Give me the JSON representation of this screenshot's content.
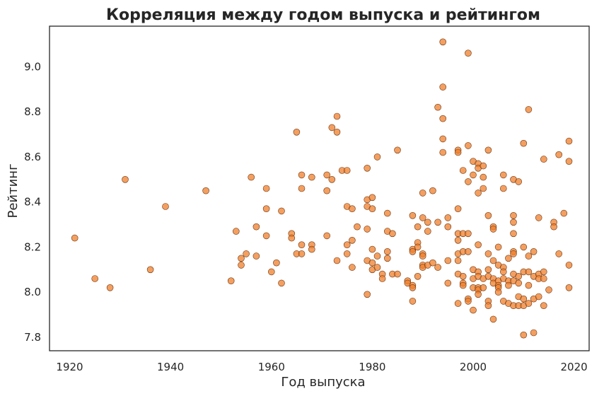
{
  "chart_data": {
    "type": "scatter",
    "title": "Корреляция между годом выпуска и рейтингом",
    "xlabel": "Год выпуска",
    "ylabel": "Рейтинг",
    "xlim": [
      1916,
      2023
    ],
    "ylim": [
      7.74,
      9.18
    ],
    "xticks": [
      1920,
      1940,
      1960,
      1980,
      2000,
      2020
    ],
    "xtick_labels": [
      "1920",
      "1940",
      "1960",
      "1980",
      "2000",
      "2020"
    ],
    "yticks": [
      7.8,
      8.0,
      8.2,
      8.4,
      8.6,
      8.8,
      9.0
    ],
    "ytick_labels": [
      "7.8",
      "8.0",
      "8.2",
      "8.4",
      "8.6",
      "8.8",
      "9.0"
    ],
    "grid": false,
    "colors": {
      "marker_fill": "#F07F2B",
      "marker_edge": "#6B3510",
      "frame": "#262626"
    },
    "points": [
      {
        "x": 1921,
        "y": 8.24
      },
      {
        "x": 1925,
        "y": 8.06
      },
      {
        "x": 1928,
        "y": 8.02
      },
      {
        "x": 1931,
        "y": 8.5
      },
      {
        "x": 1936,
        "y": 8.1
      },
      {
        "x": 1939,
        "y": 8.38
      },
      {
        "x": 1947,
        "y": 8.45
      },
      {
        "x": 1952,
        "y": 8.05
      },
      {
        "x": 1953,
        "y": 8.27
      },
      {
        "x": 1954,
        "y": 8.15
      },
      {
        "x": 1954,
        "y": 8.12
      },
      {
        "x": 1955,
        "y": 8.17
      },
      {
        "x": 1956,
        "y": 8.51
      },
      {
        "x": 1957,
        "y": 8.29
      },
      {
        "x": 1957,
        "y": 8.16
      },
      {
        "x": 1959,
        "y": 8.46
      },
      {
        "x": 1959,
        "y": 8.37
      },
      {
        "x": 1959,
        "y": 8.25
      },
      {
        "x": 1960,
        "y": 8.09
      },
      {
        "x": 1961,
        "y": 8.13
      },
      {
        "x": 1962,
        "y": 8.36
      },
      {
        "x": 1962,
        "y": 8.04
      },
      {
        "x": 1964,
        "y": 8.26
      },
      {
        "x": 1964,
        "y": 8.24
      },
      {
        "x": 1965,
        "y": 8.71
      },
      {
        "x": 1965,
        "y": 8.17
      },
      {
        "x": 1966,
        "y": 8.52
      },
      {
        "x": 1966,
        "y": 8.46
      },
      {
        "x": 1966,
        "y": 8.21
      },
      {
        "x": 1966,
        "y": 8.17
      },
      {
        "x": 1968,
        "y": 8.51
      },
      {
        "x": 1968,
        "y": 8.21
      },
      {
        "x": 1968,
        "y": 8.19
      },
      {
        "x": 1971,
        "y": 8.52
      },
      {
        "x": 1971,
        "y": 8.45
      },
      {
        "x": 1971,
        "y": 8.25
      },
      {
        "x": 1972,
        "y": 8.73
      },
      {
        "x": 1972,
        "y": 8.5
      },
      {
        "x": 1973,
        "y": 8.78
      },
      {
        "x": 1973,
        "y": 8.71
      },
      {
        "x": 1973,
        "y": 8.14
      },
      {
        "x": 1974,
        "y": 8.54
      },
      {
        "x": 1975,
        "y": 8.54
      },
      {
        "x": 1975,
        "y": 8.38
      },
      {
        "x": 1975,
        "y": 8.21
      },
      {
        "x": 1975,
        "y": 8.17
      },
      {
        "x": 1976,
        "y": 8.37
      },
      {
        "x": 1976,
        "y": 8.23
      },
      {
        "x": 1976,
        "y": 8.11
      },
      {
        "x": 1977,
        "y": 8.29
      },
      {
        "x": 1979,
        "y": 8.55
      },
      {
        "x": 1979,
        "y": 8.41
      },
      {
        "x": 1979,
        "y": 8.38
      },
      {
        "x": 1979,
        "y": 8.28
      },
      {
        "x": 1979,
        "y": 8.14
      },
      {
        "x": 1979,
        "y": 7.99
      },
      {
        "x": 1980,
        "y": 8.42
      },
      {
        "x": 1980,
        "y": 8.37
      },
      {
        "x": 1980,
        "y": 8.19
      },
      {
        "x": 1980,
        "y": 8.13
      },
      {
        "x": 1980,
        "y": 8.1
      },
      {
        "x": 1981,
        "y": 8.6
      },
      {
        "x": 1981,
        "y": 8.16
      },
      {
        "x": 1981,
        "y": 8.11
      },
      {
        "x": 1982,
        "y": 8.08
      },
      {
        "x": 1982,
        "y": 8.06
      },
      {
        "x": 1983,
        "y": 8.35
      },
      {
        "x": 1983,
        "y": 8.27
      },
      {
        "x": 1983,
        "y": 8.18
      },
      {
        "x": 1983,
        "y": 8.15
      },
      {
        "x": 1984,
        "y": 8.26
      },
      {
        "x": 1984,
        "y": 8.08
      },
      {
        "x": 1985,
        "y": 8.63
      },
      {
        "x": 1985,
        "y": 8.08
      },
      {
        "x": 1987,
        "y": 8.05
      },
      {
        "x": 1987,
        "y": 8.04
      },
      {
        "x": 1988,
        "y": 8.34
      },
      {
        "x": 1988,
        "y": 8.19
      },
      {
        "x": 1988,
        "y": 8.18
      },
      {
        "x": 1988,
        "y": 8.03
      },
      {
        "x": 1988,
        "y": 8.02
      },
      {
        "x": 1988,
        "y": 7.96
      },
      {
        "x": 1989,
        "y": 8.29
      },
      {
        "x": 1989,
        "y": 8.22
      },
      {
        "x": 1989,
        "y": 8.2
      },
      {
        "x": 1989,
        "y": 8.07
      },
      {
        "x": 1990,
        "y": 8.44
      },
      {
        "x": 1990,
        "y": 8.33
      },
      {
        "x": 1990,
        "y": 8.17
      },
      {
        "x": 1990,
        "y": 8.16
      },
      {
        "x": 1990,
        "y": 8.12
      },
      {
        "x": 1990,
        "y": 8.11
      },
      {
        "x": 1991,
        "y": 8.31
      },
      {
        "x": 1991,
        "y": 8.27
      },
      {
        "x": 1991,
        "y": 8.12
      },
      {
        "x": 1992,
        "y": 8.45
      },
      {
        "x": 1992,
        "y": 8.13
      },
      {
        "x": 1993,
        "y": 8.82
      },
      {
        "x": 1993,
        "y": 8.31
      },
      {
        "x": 1993,
        "y": 8.11
      },
      {
        "x": 1994,
        "y": 9.11
      },
      {
        "x": 1994,
        "y": 8.91
      },
      {
        "x": 1994,
        "y": 8.77
      },
      {
        "x": 1994,
        "y": 8.68
      },
      {
        "x": 1994,
        "y": 8.62
      },
      {
        "x": 1995,
        "y": 8.33
      },
      {
        "x": 1995,
        "y": 8.29
      },
      {
        "x": 1995,
        "y": 8.14
      },
      {
        "x": 1995,
        "y": 8.04
      },
      {
        "x": 1997,
        "y": 8.63
      },
      {
        "x": 1997,
        "y": 8.62
      },
      {
        "x": 1997,
        "y": 8.37
      },
      {
        "x": 1997,
        "y": 8.26
      },
      {
        "x": 1997,
        "y": 8.23
      },
      {
        "x": 1997,
        "y": 8.17
      },
      {
        "x": 1997,
        "y": 8.14
      },
      {
        "x": 1997,
        "y": 8.08
      },
      {
        "x": 1997,
        "y": 7.95
      },
      {
        "x": 1998,
        "y": 8.54
      },
      {
        "x": 1998,
        "y": 8.26
      },
      {
        "x": 1998,
        "y": 8.18
      },
      {
        "x": 1998,
        "y": 8.07
      },
      {
        "x": 1998,
        "y": 8.04
      },
      {
        "x": 1998,
        "y": 8.03
      },
      {
        "x": 1999,
        "y": 9.06
      },
      {
        "x": 1999,
        "y": 8.65
      },
      {
        "x": 1999,
        "y": 8.49
      },
      {
        "x": 1999,
        "y": 8.26
      },
      {
        "x": 1999,
        "y": 8.18
      },
      {
        "x": 1999,
        "y": 7.97
      },
      {
        "x": 1999,
        "y": 7.96
      },
      {
        "x": 2000,
        "y": 8.58
      },
      {
        "x": 2000,
        "y": 8.52
      },
      {
        "x": 2000,
        "y": 8.1
      },
      {
        "x": 2000,
        "y": 8.06
      },
      {
        "x": 2000,
        "y": 8.02
      },
      {
        "x": 2000,
        "y": 7.92
      },
      {
        "x": 2001,
        "y": 8.57
      },
      {
        "x": 2001,
        "y": 8.55
      },
      {
        "x": 2001,
        "y": 8.44
      },
      {
        "x": 2001,
        "y": 8.21
      },
      {
        "x": 2001,
        "y": 8.09
      },
      {
        "x": 2001,
        "y": 8.07
      },
      {
        "x": 2001,
        "y": 8.02
      },
      {
        "x": 2001,
        "y": 8.01
      },
      {
        "x": 2001,
        "y": 7.99
      },
      {
        "x": 2002,
        "y": 8.56
      },
      {
        "x": 2002,
        "y": 8.51
      },
      {
        "x": 2002,
        "y": 8.46
      },
      {
        "x": 2002,
        "y": 8.06
      },
      {
        "x": 2002,
        "y": 8.02
      },
      {
        "x": 2003,
        "y": 8.63
      },
      {
        "x": 2003,
        "y": 8.34
      },
      {
        "x": 2003,
        "y": 8.17
      },
      {
        "x": 2003,
        "y": 8.1
      },
      {
        "x": 2003,
        "y": 8.07
      },
      {
        "x": 2003,
        "y": 7.96
      },
      {
        "x": 2003,
        "y": 7.94
      },
      {
        "x": 2004,
        "y": 8.29
      },
      {
        "x": 2004,
        "y": 8.28
      },
      {
        "x": 2004,
        "y": 8.14
      },
      {
        "x": 2004,
        "y": 8.06
      },
      {
        "x": 2004,
        "y": 8.04
      },
      {
        "x": 2004,
        "y": 7.88
      },
      {
        "x": 2005,
        "y": 8.2
      },
      {
        "x": 2005,
        "y": 8.12
      },
      {
        "x": 2005,
        "y": 8.05
      },
      {
        "x": 2005,
        "y": 8.03
      },
      {
        "x": 2005,
        "y": 8.02
      },
      {
        "x": 2005,
        "y": 8.0
      },
      {
        "x": 2006,
        "y": 8.52
      },
      {
        "x": 2006,
        "y": 8.46
      },
      {
        "x": 2006,
        "y": 8.11
      },
      {
        "x": 2006,
        "y": 8.09
      },
      {
        "x": 2006,
        "y": 8.06
      },
      {
        "x": 2006,
        "y": 7.96
      },
      {
        "x": 2007,
        "y": 8.15
      },
      {
        "x": 2007,
        "y": 8.05
      },
      {
        "x": 2007,
        "y": 8.03
      },
      {
        "x": 2007,
        "y": 7.95
      },
      {
        "x": 2008,
        "y": 8.5
      },
      {
        "x": 2008,
        "y": 8.34
      },
      {
        "x": 2008,
        "y": 8.31
      },
      {
        "x": 2008,
        "y": 8.26
      },
      {
        "x": 2008,
        "y": 8.18
      },
      {
        "x": 2008,
        "y": 8.17
      },
      {
        "x": 2008,
        "y": 8.08
      },
      {
        "x": 2008,
        "y": 8.05
      },
      {
        "x": 2008,
        "y": 7.94
      },
      {
        "x": 2009,
        "y": 8.49
      },
      {
        "x": 2009,
        "y": 8.07
      },
      {
        "x": 2009,
        "y": 8.04
      },
      {
        "x": 2009,
        "y": 7.98
      },
      {
        "x": 2009,
        "y": 7.94
      },
      {
        "x": 2010,
        "y": 8.66
      },
      {
        "x": 2010,
        "y": 8.2
      },
      {
        "x": 2010,
        "y": 8.09
      },
      {
        "x": 2010,
        "y": 7.97
      },
      {
        "x": 2010,
        "y": 7.94
      },
      {
        "x": 2010,
        "y": 7.81
      },
      {
        "x": 2011,
        "y": 8.81
      },
      {
        "x": 2011,
        "y": 8.16
      },
      {
        "x": 2011,
        "y": 8.09
      },
      {
        "x": 2011,
        "y": 8.03
      },
      {
        "x": 2011,
        "y": 7.95
      },
      {
        "x": 2012,
        "y": 8.18
      },
      {
        "x": 2012,
        "y": 8.07
      },
      {
        "x": 2012,
        "y": 7.97
      },
      {
        "x": 2012,
        "y": 7.82
      },
      {
        "x": 2013,
        "y": 8.33
      },
      {
        "x": 2013,
        "y": 8.08
      },
      {
        "x": 2013,
        "y": 8.06
      },
      {
        "x": 2013,
        "y": 7.98
      },
      {
        "x": 2014,
        "y": 8.59
      },
      {
        "x": 2014,
        "y": 8.09
      },
      {
        "x": 2014,
        "y": 8.06
      },
      {
        "x": 2014,
        "y": 7.94
      },
      {
        "x": 2015,
        "y": 8.01
      },
      {
        "x": 2016,
        "y": 8.31
      },
      {
        "x": 2016,
        "y": 8.29
      },
      {
        "x": 2017,
        "y": 8.61
      },
      {
        "x": 2017,
        "y": 8.17
      },
      {
        "x": 2018,
        "y": 8.35
      },
      {
        "x": 2019,
        "y": 8.67
      },
      {
        "x": 2019,
        "y": 8.58
      },
      {
        "x": 2019,
        "y": 8.12
      },
      {
        "x": 2019,
        "y": 8.02
      }
    ]
  }
}
